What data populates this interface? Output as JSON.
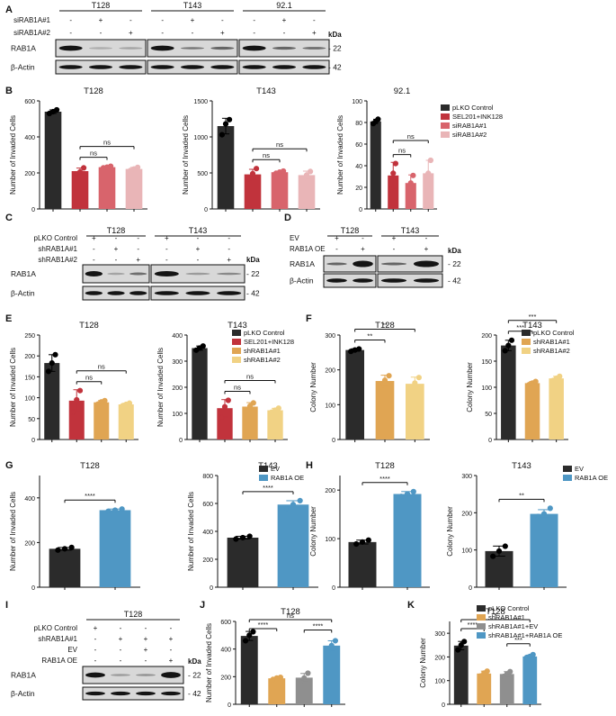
{
  "figure": "multi-panel scientific figure",
  "colors": {
    "black": "#2b2b2b",
    "red": "#c1333c",
    "mid_pink": "#d8646c",
    "light_pink": "#e9b5b7",
    "orange": "#e0a553",
    "yellow": "#f1d284",
    "grey": "#8f8f8f",
    "blue": "#4f97c4"
  },
  "blots": [
    {
      "panel": "A",
      "kda_label": "kDa",
      "groups": [
        "T128",
        "T143",
        "92.1"
      ],
      "condition_rows": [
        {
          "label": "siRAB1A#1",
          "signs": [
            "-",
            "+",
            "-",
            "-",
            "+",
            "-",
            "-",
            "+",
            "-"
          ]
        },
        {
          "label": "siRAB1A#2",
          "signs": [
            "-",
            "-",
            "+",
            "-",
            "-",
            "+",
            "-",
            "-",
            "+"
          ]
        }
      ],
      "bands": [
        {
          "label": "RAB1A",
          "kda": "22"
        },
        {
          "label": "β-Actin",
          "kda": "42"
        }
      ]
    },
    {
      "panel": "C",
      "kda_label": "kDa",
      "groups": [
        "T128",
        "T143"
      ],
      "condition_rows": [
        {
          "label": "pLKO Control",
          "signs": [
            "+",
            "-",
            "-",
            "+",
            "-",
            "-"
          ]
        },
        {
          "label": "shRAB1A#1",
          "signs": [
            "-",
            "+",
            "-",
            "-",
            "+",
            "-"
          ]
        },
        {
          "label": "shRAB1A#2",
          "signs": [
            "-",
            "-",
            "+",
            "-",
            "-",
            "+"
          ]
        }
      ],
      "bands": [
        {
          "label": "RAB1A",
          "kda": "22"
        },
        {
          "label": "β-Actin",
          "kda": "42"
        }
      ]
    },
    {
      "panel": "D",
      "kda_label": "kDa",
      "groups": [
        "T128",
        "T143"
      ],
      "condition_rows": [
        {
          "label": "EV",
          "signs": [
            "+",
            "-",
            "+",
            "-"
          ]
        },
        {
          "label": "RAB1A OE",
          "signs": [
            "-",
            "+",
            "-",
            "+"
          ]
        }
      ],
      "bands": [
        {
          "label": "RAB1A",
          "kda": "22"
        },
        {
          "label": "β-Actin",
          "kda": "42"
        }
      ]
    },
    {
      "panel": "I",
      "kda_label": "kDa",
      "groups": [
        "T128"
      ],
      "condition_rows": [
        {
          "label": "pLKO Control",
          "signs": [
            "+",
            "-",
            "-",
            "-"
          ]
        },
        {
          "label": "shRAB1A#1",
          "signs": [
            "-",
            "+",
            "+",
            "+"
          ]
        },
        {
          "label": "EV",
          "signs": [
            "-",
            "-",
            "+",
            "-"
          ]
        },
        {
          "label": "RAB1A OE",
          "signs": [
            "-",
            "-",
            "-",
            "+"
          ]
        }
      ],
      "bands": [
        {
          "label": "RAB1A",
          "kda": "22"
        },
        {
          "label": "β-Actin",
          "kda": "42"
        }
      ]
    }
  ],
  "chart_data": [
    {
      "panel": "B",
      "type": "bar",
      "title": "T128",
      "ylabel": "Number of Invaded Cells",
      "ylim": [
        0,
        600
      ],
      "yticks": [
        0,
        200,
        400,
        600
      ],
      "bars": [
        {
          "v": 540,
          "c": "black",
          "pts": [
            530,
            540,
            550
          ]
        },
        {
          "v": 210,
          "c": "red",
          "pts": [
            195,
            205,
            228
          ]
        },
        {
          "v": 232,
          "c": "mid_pink",
          "pts": [
            228,
            232,
            237
          ]
        },
        {
          "v": 222,
          "c": "light_pink",
          "pts": [
            213,
            222,
            231
          ]
        }
      ],
      "brackets": [
        {
          "from": 1,
          "to": 3,
          "label": "ns"
        },
        {
          "from": 1,
          "to": 2,
          "label": "ns"
        }
      ]
    },
    {
      "panel": "B",
      "type": "bar",
      "title": "T143",
      "ylabel": "Number of Invaded Cells",
      "ylim": [
        0,
        1500
      ],
      "yticks": [
        0,
        500,
        1000,
        1500
      ],
      "bars": [
        {
          "v": 1150,
          "c": "black",
          "pts": [
            1030,
            1180,
            1240
          ]
        },
        {
          "v": 480,
          "c": "red",
          "pts": [
            420,
            490,
            560
          ]
        },
        {
          "v": 510,
          "c": "mid_pink",
          "pts": [
            495,
            512,
            525
          ]
        },
        {
          "v": 470,
          "c": "light_pink",
          "pts": [
            410,
            470,
            520
          ]
        }
      ],
      "brackets": [
        {
          "from": 1,
          "to": 3,
          "label": "ns"
        },
        {
          "from": 1,
          "to": 2,
          "label": "ns"
        }
      ]
    },
    {
      "panel": "B",
      "type": "bar",
      "title": "92.1",
      "ylabel": "Number of Invaded Cells",
      "ylim": [
        0,
        100
      ],
      "yticks": [
        0,
        20,
        40,
        60,
        80,
        100
      ],
      "bars": [
        {
          "v": 81,
          "c": "black",
          "pts": [
            79,
            81,
            83
          ]
        },
        {
          "v": 31,
          "c": "red",
          "pts": [
            18,
            33,
            42
          ]
        },
        {
          "v": 24,
          "c": "mid_pink",
          "pts": [
            16,
            24,
            31
          ]
        },
        {
          "v": 33,
          "c": "light_pink",
          "pts": [
            21,
            33,
            45
          ]
        }
      ],
      "brackets": [
        {
          "from": 1,
          "to": 3,
          "label": "ns"
        },
        {
          "from": 1,
          "to": 2,
          "label": "ns"
        }
      ],
      "legend": [
        {
          "label": "pLKO Control",
          "c": "black"
        },
        {
          "label": "SEL201+INK128",
          "c": "red"
        },
        {
          "label": "siRAB1A#1",
          "c": "mid_pink"
        },
        {
          "label": "siRAB1A#2",
          "c": "light_pink"
        }
      ]
    },
    {
      "panel": "E",
      "type": "bar",
      "title": "T128",
      "ylabel": "Number of Invaded Cells",
      "ylim": [
        0,
        250
      ],
      "yticks": [
        0,
        50,
        100,
        150,
        200,
        250
      ],
      "bars": [
        {
          "v": 183,
          "c": "black",
          "pts": [
            163,
            183,
            203
          ]
        },
        {
          "v": 93,
          "c": "red",
          "pts": [
            65,
            95,
            117
          ]
        },
        {
          "v": 89,
          "c": "orange",
          "pts": [
            85,
            90,
            93
          ]
        },
        {
          "v": 84,
          "c": "yellow",
          "pts": [
            81,
            84,
            87
          ]
        }
      ],
      "brackets": [
        {
          "from": 1,
          "to": 3,
          "label": "ns"
        },
        {
          "from": 1,
          "to": 2,
          "label": "ns"
        }
      ]
    },
    {
      "panel": "E",
      "type": "bar",
      "title": "T143",
      "ylabel": "Number of Invaded Cells",
      "ylim": [
        0,
        400
      ],
      "yticks": [
        0,
        100,
        200,
        300,
        400
      ],
      "bars": [
        {
          "v": 350,
          "c": "black",
          "pts": [
            342,
            350,
            358
          ]
        },
        {
          "v": 120,
          "c": "red",
          "pts": [
            85,
            125,
            150
          ]
        },
        {
          "v": 126,
          "c": "orange",
          "pts": [
            110,
            128,
            140
          ]
        },
        {
          "v": 112,
          "c": "yellow",
          "pts": [
            105,
            112,
            120
          ]
        }
      ],
      "brackets": [
        {
          "from": 1,
          "to": 3,
          "label": "ns"
        },
        {
          "from": 1,
          "to": 2,
          "label": "ns"
        }
      ],
      "legend": [
        {
          "label": "pLKO Control",
          "c": "black"
        },
        {
          "label": "SEL201+INK128",
          "c": "red"
        },
        {
          "label": "shRAB1A#1",
          "c": "orange"
        },
        {
          "label": "shRAB1A#2",
          "c": "yellow"
        }
      ]
    },
    {
      "panel": "F",
      "type": "bar",
      "title": "T128",
      "ylabel": "Colony Number",
      "ylim": [
        0,
        300
      ],
      "yticks": [
        0,
        100,
        200,
        300
      ],
      "bars": [
        {
          "v": 257,
          "c": "black",
          "pts": [
            253,
            257,
            260
          ]
        },
        {
          "v": 168,
          "c": "orange",
          "pts": [
            150,
            170,
            183
          ]
        },
        {
          "v": 160,
          "c": "yellow",
          "pts": [
            140,
            162,
            178
          ]
        }
      ],
      "brackets": [
        {
          "from": 0,
          "to": 2,
          "label": "**"
        },
        {
          "from": 0,
          "to": 1,
          "label": "**"
        }
      ]
    },
    {
      "panel": "F",
      "type": "bar",
      "title": "T143",
      "ylabel": "Colony Number",
      "ylim": [
        0,
        200
      ],
      "yticks": [
        0,
        50,
        100,
        150,
        200
      ],
      "bars": [
        {
          "v": 180,
          "c": "black",
          "pts": [
            170,
            180,
            190
          ]
        },
        {
          "v": 108,
          "c": "orange",
          "pts": [
            105,
            108,
            111
          ]
        },
        {
          "v": 117,
          "c": "yellow",
          "pts": [
            113,
            117,
            121
          ]
        }
      ],
      "brackets": [
        {
          "from": 0,
          "to": 2,
          "label": "***"
        },
        {
          "from": 0,
          "to": 1,
          "label": "***"
        }
      ],
      "legend": [
        {
          "label": "pLKO Control",
          "c": "black"
        },
        {
          "label": "shRAB1A#1",
          "c": "orange"
        },
        {
          "label": "shRAB1A#2",
          "c": "yellow"
        }
      ]
    },
    {
      "panel": "G",
      "type": "bar",
      "title": "T128",
      "ylabel": "Number of Invaded Cells",
      "ylim": [
        0,
        500
      ],
      "yticks": [
        0,
        200,
        400
      ],
      "bars": [
        {
          "v": 172,
          "c": "black",
          "pts": [
            166,
            172,
            178
          ]
        },
        {
          "v": 345,
          "c": "blue",
          "pts": [
            340,
            345,
            350
          ]
        }
      ],
      "brackets": [
        {
          "from": 0,
          "to": 1,
          "label": "****"
        }
      ]
    },
    {
      "panel": "G",
      "type": "bar",
      "title": "T143",
      "ylabel": "Number of Invaded Cells",
      "ylim": [
        0,
        800
      ],
      "yticks": [
        0,
        200,
        400,
        600,
        800
      ],
      "bars": [
        {
          "v": 355,
          "c": "black",
          "pts": [
            345,
            355,
            365
          ]
        },
        {
          "v": 592,
          "c": "blue",
          "pts": [
            565,
            592,
            620
          ]
        }
      ],
      "brackets": [
        {
          "from": 0,
          "to": 1,
          "label": "****"
        }
      ],
      "legend": [
        {
          "label": "EV",
          "c": "black"
        },
        {
          "label": "RAB1A OE",
          "c": "blue"
        }
      ]
    },
    {
      "panel": "H",
      "type": "bar",
      "title": "T128",
      "ylabel": "Colony Number",
      "ylim": [
        0,
        230
      ],
      "yticks": [
        0,
        100,
        200
      ],
      "bars": [
        {
          "v": 93,
          "c": "black",
          "pts": [
            89,
            93,
            97
          ]
        },
        {
          "v": 192,
          "c": "blue",
          "pts": [
            187,
            192,
            197
          ]
        }
      ],
      "brackets": [
        {
          "from": 0,
          "to": 1,
          "label": "****"
        }
      ]
    },
    {
      "panel": "H",
      "type": "bar",
      "title": "T143",
      "ylabel": "Colony Number",
      "ylim": [
        0,
        300
      ],
      "yticks": [
        0,
        100,
        200,
        300
      ],
      "bars": [
        {
          "v": 97,
          "c": "black",
          "pts": [
            83,
            97,
            110
          ]
        },
        {
          "v": 197,
          "c": "blue",
          "pts": [
            190,
            197,
            212
          ]
        }
      ],
      "brackets": [
        {
          "from": 0,
          "to": 1,
          "label": "**"
        }
      ],
      "legend": [
        {
          "label": "EV",
          "c": "black"
        },
        {
          "label": "RAB1A OE",
          "c": "blue"
        }
      ]
    },
    {
      "panel": "J",
      "type": "bar",
      "title": "T128",
      "ylabel": "Number of Invaded Cells",
      "ylim": [
        0,
        600
      ],
      "yticks": [
        0,
        200,
        400,
        600
      ],
      "bars": [
        {
          "v": 495,
          "c": "black",
          "pts": [
            460,
            500,
            525
          ]
        },
        {
          "v": 188,
          "c": "orange",
          "pts": [
            180,
            190,
            195
          ]
        },
        {
          "v": 193,
          "c": "grey",
          "pts": [
            165,
            190,
            225
          ]
        },
        {
          "v": 425,
          "c": "blue",
          "pts": [
            390,
            425,
            460
          ]
        }
      ],
      "brackets": [
        {
          "from": 0,
          "to": 3,
          "label": "ns"
        },
        {
          "from": 0,
          "to": 1,
          "label": "****"
        },
        {
          "from": 2,
          "to": 3,
          "label": "****"
        }
      ]
    },
    {
      "panel": "K",
      "type": "bar",
      "title": "T128",
      "ylabel": "Colony Number",
      "ylim": [
        0,
        350
      ],
      "yticks": [
        0,
        100,
        200,
        300
      ],
      "bars": [
        {
          "v": 248,
          "c": "black",
          "pts": [
            230,
            250,
            265
          ]
        },
        {
          "v": 130,
          "c": "orange",
          "pts": [
            120,
            132,
            140
          ]
        },
        {
          "v": 128,
          "c": "grey",
          "pts": [
            118,
            128,
            138
          ]
        },
        {
          "v": 202,
          "c": "blue",
          "pts": [
            198,
            202,
            210
          ]
        }
      ],
      "brackets": [
        {
          "from": 0,
          "to": 3,
          "label": "*"
        },
        {
          "from": 0,
          "to": 1,
          "label": "****"
        },
        {
          "from": 2,
          "to": 3,
          "label": "***"
        }
      ],
      "legend": [
        {
          "label": "pLKO Control",
          "c": "black"
        },
        {
          "label": "shRAB1A#1",
          "c": "orange"
        },
        {
          "label": "shRAB1A#1+EV",
          "c": "grey"
        },
        {
          "label": "shRAB1A#1+RAB1A OE",
          "c": "blue"
        }
      ]
    }
  ]
}
